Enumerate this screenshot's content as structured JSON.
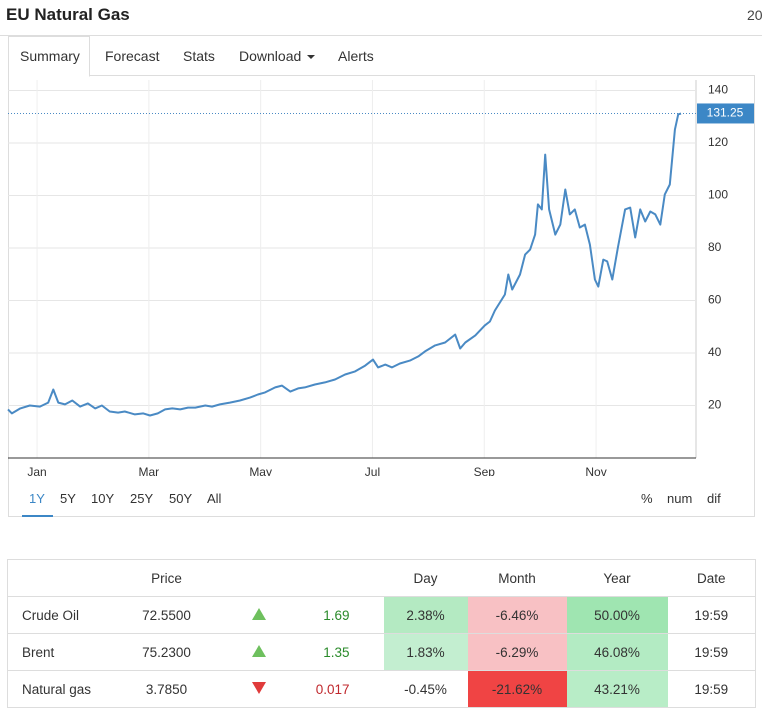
{
  "header": {
    "title": "EU Natural Gas",
    "date_fragment": "20"
  },
  "tabs": [
    "Summary",
    "Forecast",
    "Stats",
    "Download",
    "Alerts"
  ],
  "chart_data": {
    "type": "line",
    "color": "#4a8ac4",
    "x": [
      -0.52,
      -0.45,
      -0.3,
      -0.13,
      0.05,
      0.2,
      0.29,
      0.38,
      0.5,
      0.63,
      0.77,
      0.91,
      1.04,
      1.16,
      1.3,
      1.45,
      1.57,
      1.75,
      1.9,
      2.02,
      2.16,
      2.29,
      2.42,
      2.56,
      2.7,
      2.83,
      3.01,
      3.13,
      3.27,
      3.45,
      3.63,
      3.81,
      3.95,
      4.08,
      4.26,
      4.38,
      4.53,
      4.67,
      4.79,
      4.97,
      5.15,
      5.33,
      5.51,
      5.69,
      5.87,
      6.01,
      6.1,
      6.23,
      6.35,
      6.49,
      6.67,
      6.82,
      6.94,
      7.12,
      7.3,
      7.48,
      7.57,
      7.66,
      7.84,
      8.01,
      8.1,
      8.19,
      8.37,
      8.43,
      8.5,
      8.64,
      8.73,
      8.82,
      8.91,
      8.96,
      9.03,
      9.09,
      9.16,
      9.27,
      9.36,
      9.45,
      9.53,
      9.62,
      9.71,
      9.8,
      9.89,
      9.98,
      10.04,
      10.13,
      10.2,
      10.29,
      10.39,
      10.52,
      10.61,
      10.7,
      10.79,
      10.88,
      10.97,
      11.06,
      11.15,
      11.23,
      11.32,
      11.41,
      11.47,
      11.52
    ],
    "values": [
      18.5,
      17.0,
      18.9,
      20.0,
      19.6,
      21.1,
      26.1,
      21.1,
      20.4,
      21.9,
      19.6,
      20.8,
      18.9,
      20.0,
      17.7,
      17.3,
      17.7,
      16.6,
      17.0,
      16.2,
      17.0,
      18.5,
      18.9,
      18.5,
      19.2,
      19.2,
      20.0,
      19.6,
      20.4,
      21.1,
      21.9,
      23.0,
      24.2,
      25.0,
      26.9,
      27.6,
      25.3,
      26.5,
      26.9,
      28.0,
      28.8,
      29.9,
      31.8,
      33.0,
      35.2,
      37.5,
      34.5,
      35.6,
      34.5,
      36.0,
      37.1,
      38.7,
      40.6,
      42.9,
      44.0,
      47.0,
      41.7,
      44.0,
      46.7,
      50.5,
      52.0,
      56.2,
      62.3,
      69.9,
      64.2,
      69.9,
      77.5,
      79.4,
      85.1,
      96.6,
      94.7,
      115.6,
      94.7,
      85.1,
      88.9,
      102.3,
      92.8,
      94.7,
      87.8,
      88.9,
      81.3,
      68.0,
      65.3,
      75.6,
      74.9,
      68.0,
      80.2,
      94.7,
      95.4,
      84.0,
      94.7,
      90.1,
      93.9,
      92.8,
      88.9,
      100.4,
      104.2,
      125.1,
      130.9,
      131.25
    ],
    "xlim": [
      -0.52,
      11.77
    ],
    "ylim": [
      0,
      144
    ],
    "xticks": [
      {
        "value": 0,
        "label": "Jan"
      },
      {
        "value": 2,
        "label": "Mar"
      },
      {
        "value": 4,
        "label": "May"
      },
      {
        "value": 6,
        "label": "Jul"
      },
      {
        "value": 8,
        "label": "Sep"
      },
      {
        "value": 10,
        "label": "Nov"
      }
    ],
    "yticks": [
      20,
      40,
      60,
      80,
      100,
      120,
      140
    ],
    "grid": true
  },
  "range_buttons": [
    "1Y",
    "5Y",
    "10Y",
    "25Y",
    "50Y",
    "All"
  ],
  "display_modes": [
    "%",
    "num",
    "dif"
  ],
  "table": {
    "columns": {
      "price": "Price",
      "day": "Day",
      "month": "Month",
      "year": "Year",
      "date": "Date"
    },
    "rows": [
      {
        "name": "Crude Oil",
        "price": "72.5500",
        "trend": "up",
        "change": "1.69",
        "day": "2.38%",
        "month": "-6.46%",
        "year": "50.00%",
        "date": "19:59"
      },
      {
        "name": "Brent",
        "price": "75.2300",
        "trend": "up",
        "change": "1.35",
        "day": "1.83%",
        "month": "-6.29%",
        "year": "46.08%",
        "date": "19:59"
      },
      {
        "name": "Natural gas",
        "price": "3.7850",
        "trend": "down",
        "change": "0.017",
        "day": "-0.45%",
        "month": "-21.62%",
        "year": "43.21%",
        "date": "19:59"
      }
    ]
  }
}
